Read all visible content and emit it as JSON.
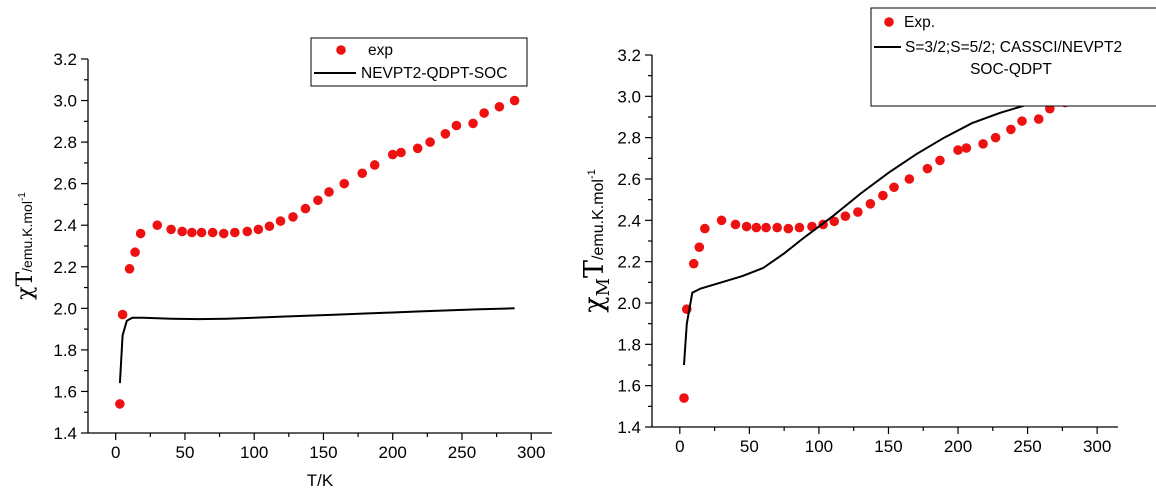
{
  "chart_data": [
    {
      "type": "scatter",
      "xlabel": "T/K",
      "ylabel": {
        "main": "χT",
        "unit": "/emu.K.mol",
        "sup": "-1"
      },
      "xlim": [
        -20,
        315
      ],
      "ylim": [
        1.4,
        3.2
      ],
      "xticks": [
        0,
        50,
        100,
        150,
        200,
        250,
        300
      ],
      "yticks": [
        "1.4",
        "1.6",
        "1.8",
        "2.0",
        "2.2",
        "2.4",
        "2.6",
        "2.8",
        "3.0",
        "3.2"
      ],
      "legend": {
        "position": "top-right",
        "entries": [
          "exp",
          "NEVPT2-QDPT-SOC"
        ]
      },
      "colors": {
        "exp": "#ee1111",
        "theory": "#000000"
      },
      "series": [
        {
          "name": "exp",
          "kind": "points",
          "points": [
            [
              3,
              1.54
            ],
            [
              5,
              1.97
            ],
            [
              10,
              2.19
            ],
            [
              14,
              2.27
            ],
            [
              18,
              2.36
            ],
            [
              30,
              2.4
            ],
            [
              40,
              2.38
            ],
            [
              48,
              2.37
            ],
            [
              55,
              2.365
            ],
            [
              62,
              2.365
            ],
            [
              70,
              2.365
            ],
            [
              78,
              2.36
            ],
            [
              86,
              2.365
            ],
            [
              95,
              2.37
            ],
            [
              103,
              2.38
            ],
            [
              111,
              2.395
            ],
            [
              119,
              2.42
            ],
            [
              128,
              2.44
            ],
            [
              137,
              2.48
            ],
            [
              146,
              2.52
            ],
            [
              154,
              2.56
            ],
            [
              165,
              2.6
            ],
            [
              178,
              2.65
            ],
            [
              187,
              2.69
            ],
            [
              200,
              2.74
            ],
            [
              206,
              2.75
            ],
            [
              218,
              2.77
            ],
            [
              227,
              2.8
            ],
            [
              238,
              2.84
            ],
            [
              246,
              2.88
            ],
            [
              258,
              2.89
            ],
            [
              266,
              2.94
            ],
            [
              277,
              2.97
            ],
            [
              288,
              3.0
            ]
          ]
        },
        {
          "name": "NEVPT2-QDPT-SOC",
          "kind": "line",
          "points": [
            [
              3,
              1.64
            ],
            [
              5,
              1.87
            ],
            [
              8,
              1.94
            ],
            [
              12,
              1.955
            ],
            [
              20,
              1.955
            ],
            [
              40,
              1.95
            ],
            [
              60,
              1.948
            ],
            [
              80,
              1.95
            ],
            [
              100,
              1.955
            ],
            [
              120,
              1.96
            ],
            [
              140,
              1.965
            ],
            [
              160,
              1.97
            ],
            [
              180,
              1.975
            ],
            [
              200,
              1.98
            ],
            [
              220,
              1.985
            ],
            [
              240,
              1.99
            ],
            [
              260,
              1.995
            ],
            [
              288,
              2.0
            ]
          ]
        }
      ]
    },
    {
      "type": "scatter",
      "xlabel": "",
      "ylabel": {
        "main": "χ",
        "sub": "M",
        "main2": "T",
        "unit": "/emu.K.mol",
        "sup": "-1"
      },
      "xlim": [
        -20,
        315
      ],
      "ylim": [
        1.4,
        3.2
      ],
      "xticks": [
        0,
        50,
        100,
        150,
        200,
        250,
        300
      ],
      "yticks": [
        "1.4",
        "1.6",
        "1.8",
        "2.0",
        "2.2",
        "2.4",
        "2.6",
        "2.8",
        "3.0",
        "3.2"
      ],
      "legend": {
        "position": "top-right",
        "entries": [
          "Exp.",
          "S=3/2;S=5/2; CASSCI/NEVPT2",
          "SOC-QDPT"
        ]
      },
      "colors": {
        "exp": "#ee1111",
        "theory": "#000000"
      },
      "series": [
        {
          "name": "Exp.",
          "kind": "points",
          "points": [
            [
              3,
              1.54
            ],
            [
              5,
              1.97
            ],
            [
              10,
              2.19
            ],
            [
              14,
              2.27
            ],
            [
              18,
              2.36
            ],
            [
              30,
              2.4
            ],
            [
              40,
              2.38
            ],
            [
              48,
              2.37
            ],
            [
              55,
              2.365
            ],
            [
              62,
              2.365
            ],
            [
              70,
              2.365
            ],
            [
              78,
              2.36
            ],
            [
              86,
              2.365
            ],
            [
              95,
              2.37
            ],
            [
              103,
              2.38
            ],
            [
              111,
              2.395
            ],
            [
              119,
              2.42
            ],
            [
              128,
              2.44
            ],
            [
              137,
              2.48
            ],
            [
              146,
              2.52
            ],
            [
              154,
              2.56
            ],
            [
              165,
              2.6
            ],
            [
              178,
              2.65
            ],
            [
              187,
              2.69
            ],
            [
              200,
              2.74
            ],
            [
              206,
              2.75
            ],
            [
              218,
              2.77
            ],
            [
              227,
              2.8
            ],
            [
              238,
              2.84
            ],
            [
              246,
              2.88
            ],
            [
              258,
              2.89
            ],
            [
              266,
              2.94
            ],
            [
              277,
              2.97
            ],
            [
              288,
              3.0
            ]
          ]
        },
        {
          "name": "S=3/2;S=5/2; CASSCI/NEVPT2 SOC-QDPT",
          "kind": "line",
          "points": [
            [
              3,
              1.7
            ],
            [
              5,
              1.9
            ],
            [
              9,
              2.05
            ],
            [
              15,
              2.07
            ],
            [
              30,
              2.1
            ],
            [
              45,
              2.13
            ],
            [
              60,
              2.17
            ],
            [
              75,
              2.24
            ],
            [
              90,
              2.32
            ],
            [
              110,
              2.42
            ],
            [
              130,
              2.53
            ],
            [
              150,
              2.63
            ],
            [
              170,
              2.72
            ],
            [
              190,
              2.8
            ],
            [
              210,
              2.87
            ],
            [
              230,
              2.92
            ],
            [
              250,
              2.96
            ],
            [
              270,
              2.99
            ],
            [
              290,
              3.01
            ]
          ]
        }
      ]
    }
  ]
}
